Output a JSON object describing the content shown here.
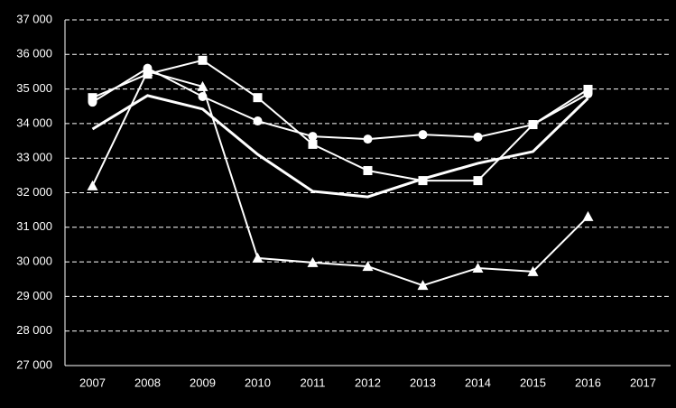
{
  "chart_data": {
    "type": "line",
    "categories": [
      "2007",
      "2008",
      "2009",
      "2010",
      "2011",
      "2012",
      "2013",
      "2014",
      "2015",
      "2016",
      "2017"
    ],
    "series": [
      {
        "color": "#ffffff",
        "marker": "circle",
        "values": [
          34620,
          35600,
          34780,
          34075,
          33630,
          33550,
          33680,
          33610,
          33970,
          34860,
          null
        ]
      },
      {
        "color": "#ffffff",
        "marker": "square",
        "values": [
          34750,
          35430,
          35830,
          34750,
          33400,
          32640,
          32350,
          32350,
          33970,
          34990,
          null
        ]
      },
      {
        "color": "#ffffff",
        "marker": "triangle",
        "values": [
          32200,
          35510,
          35070,
          30110,
          29980,
          29870,
          29320,
          29820,
          29720,
          31310,
          null
        ]
      },
      {
        "color": "#ffffff",
        "marker": "none",
        "width": 3,
        "values": [
          33840,
          34810,
          34420,
          33110,
          32040,
          31880,
          32400,
          32850,
          33190,
          34730,
          null
        ]
      }
    ],
    "ylim": [
      27000,
      37000
    ],
    "yticks": [
      {
        "value": 27000,
        "label": "27 000"
      },
      {
        "value": 28000,
        "label": "28 000"
      },
      {
        "value": 29000,
        "label": "29 000"
      },
      {
        "value": 30000,
        "label": "30 000"
      },
      {
        "value": 31000,
        "label": "31 000"
      },
      {
        "value": 32000,
        "label": "32 000"
      },
      {
        "value": 33000,
        "label": "33 000"
      },
      {
        "value": 34000,
        "label": "34 000"
      },
      {
        "value": 35000,
        "label": "35 000"
      },
      {
        "value": 36000,
        "label": "36 000"
      },
      {
        "value": 37000,
        "label": "37 000"
      }
    ],
    "grid": true
  }
}
